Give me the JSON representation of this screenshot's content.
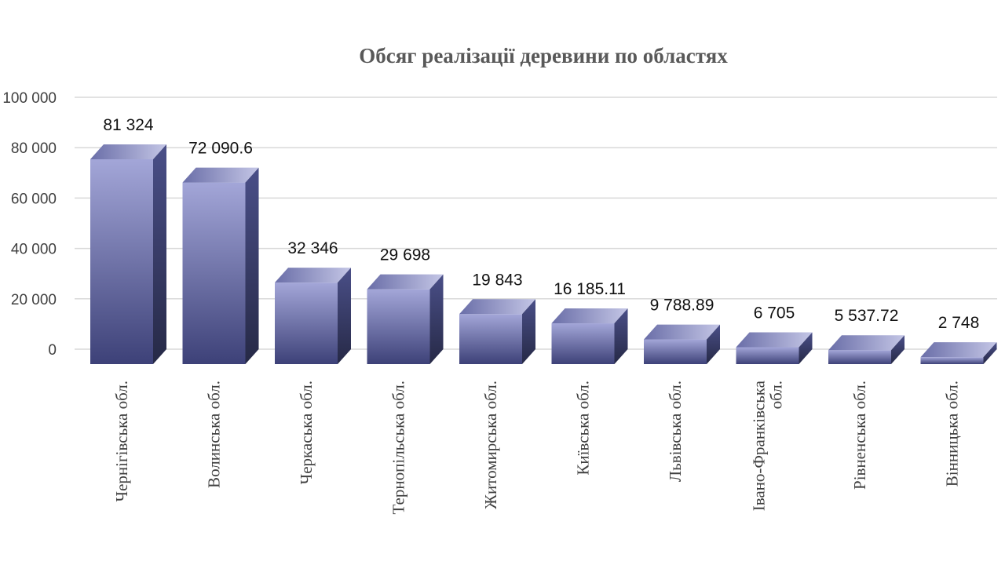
{
  "chart_data": {
    "type": "bar",
    "style": "3d-column",
    "title": "Обсяг реалізації деревини по областях",
    "xlabel": "",
    "ylabel": "",
    "ylim": [
      0,
      100000
    ],
    "y_ticks": [
      "0",
      "20 000",
      "40 000",
      "60 000",
      "80 000",
      "100 000"
    ],
    "y_tick_values": [
      0,
      20000,
      40000,
      60000,
      80000,
      100000
    ],
    "grid": true,
    "legend": "none",
    "categories": [
      "Чернігівська обл.",
      "Волинська обл.",
      "Черкаська обл.",
      "Тернопільська обл.",
      "Житомирська обл.",
      "Київська обл.",
      "Львівська обл.",
      "Івано-Франківська обл.",
      "Рівненська обл.",
      "Вінницька обл."
    ],
    "category_lines": [
      [
        "Чернігівська обл."
      ],
      [
        "Волинська обл."
      ],
      [
        "Черкаська обл."
      ],
      [
        "Тернопільська обл."
      ],
      [
        "Житомирська обл."
      ],
      [
        "Київська обл."
      ],
      [
        "Львівська обл."
      ],
      [
        "Івано-Франківська",
        "обл."
      ],
      [
        "Рівненська обл."
      ],
      [
        "Вінницька обл."
      ]
    ],
    "values": [
      81324,
      72090.6,
      32346,
      29698,
      19843,
      16185.11,
      9788.89,
      6705,
      5537.72,
      2748
    ],
    "data_labels": [
      "81 324",
      "72 090.6",
      "32 346",
      "29 698",
      "19 843",
      "16 185.11",
      "9 788.89",
      "6 705",
      "5 537.72",
      "2 748"
    ],
    "bar_color": "#4a4f8c"
  }
}
